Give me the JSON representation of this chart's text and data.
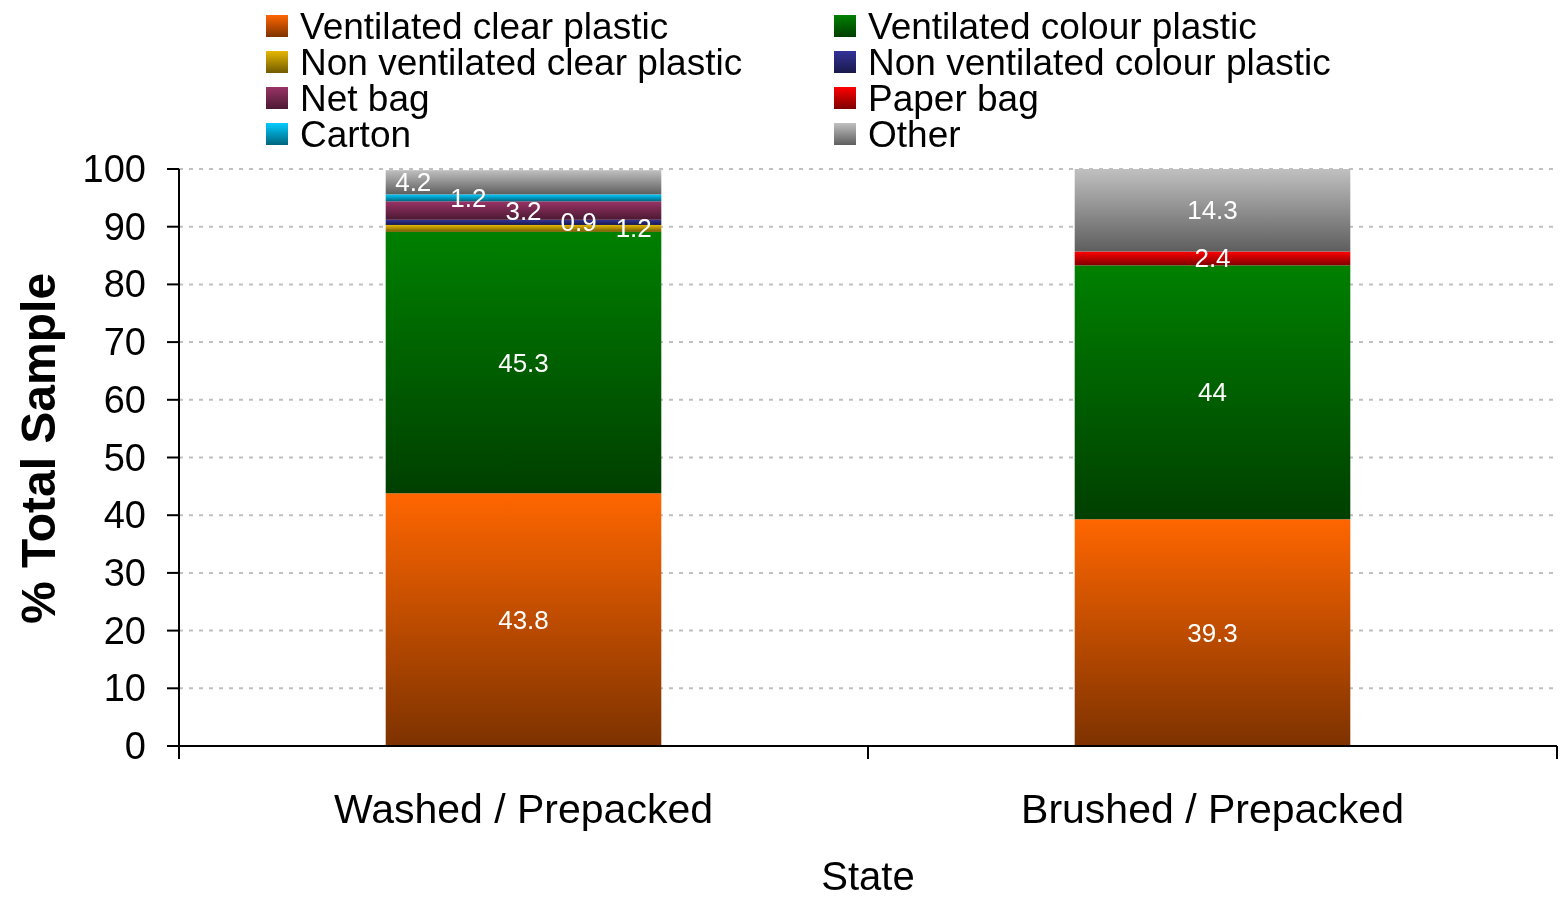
{
  "chart_data": {
    "type": "bar",
    "stacked": true,
    "categories": [
      "Washed / Prepacked",
      "Brushed / Prepacked"
    ],
    "xlabel": "State",
    "ylabel": "% Total Sample",
    "ylim": [
      0,
      100
    ],
    "yticks": [
      0,
      10,
      20,
      30,
      40,
      50,
      60,
      70,
      80,
      90,
      100
    ],
    "grid": "y",
    "legend": "top",
    "data_labels": true,
    "series": [
      {
        "name": "Ventilated clear plastic",
        "color": "#ff6600",
        "values": [
          43.8,
          39.3
        ]
      },
      {
        "name": "Ventilated colour plastic",
        "color": "#008000",
        "values": [
          45.3,
          44
        ]
      },
      {
        "name": "Non ventilated clear plastic",
        "color": "#e6b800",
        "values": [
          1.2,
          null
        ]
      },
      {
        "name": "Non ventilated colour plastic",
        "color": "#333399",
        "values": [
          0.9,
          null
        ]
      },
      {
        "name": "Net bag",
        "color": "#993366",
        "values": [
          3.2,
          null
        ]
      },
      {
        "name": "Paper bag",
        "color": "#ff0000",
        "values": [
          null,
          2.4
        ]
      },
      {
        "name": "Carton",
        "color": "#00ccff",
        "values": [
          1.2,
          null
        ]
      },
      {
        "name": "Other",
        "color": "#c0c0c0",
        "values": [
          4.2,
          14.3
        ]
      }
    ]
  }
}
